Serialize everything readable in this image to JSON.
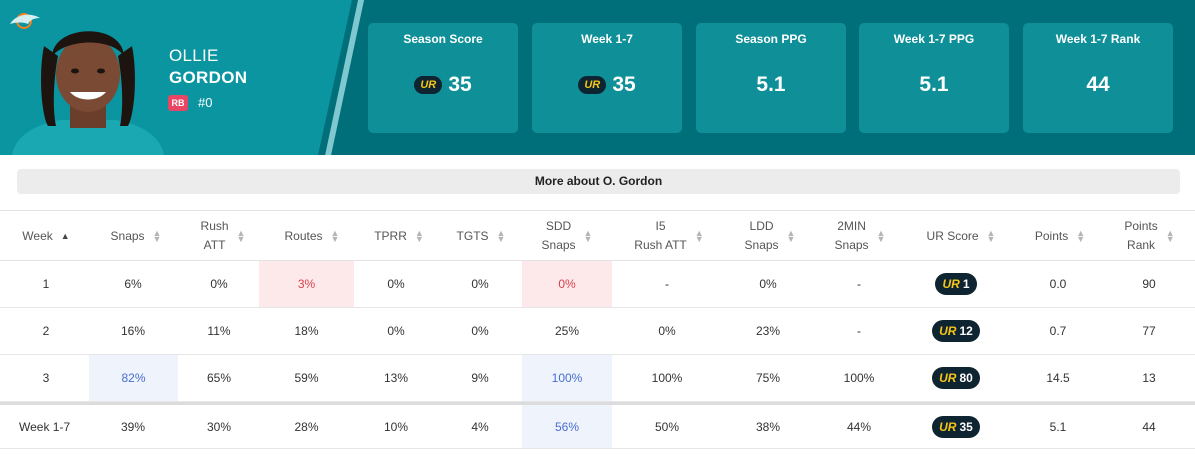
{
  "player": {
    "first_name": "OLLIE",
    "last_name": "GORDON",
    "position": "RB",
    "jersey": "#0"
  },
  "colors": {
    "header_bg": "#006f7a",
    "header_panel": "#0a95a0",
    "card_bg": "#0f8f98",
    "ur_gold": "#f5c518",
    "ur_dark": "#0e2430",
    "pos_badge": "#e84664"
  },
  "ur_logo_text": "UR",
  "cards": [
    {
      "label": "Season Score",
      "value": "35",
      "ur": true
    },
    {
      "label": "Week 1-7",
      "value": "35",
      "ur": true
    },
    {
      "label": "Season PPG",
      "value": "5.1",
      "ur": false
    },
    {
      "label": "Week 1-7 PPG",
      "value": "5.1",
      "ur": false
    },
    {
      "label": "Week 1-7 Rank",
      "value": "44",
      "ur": false
    }
  ],
  "more_label": "More about O. Gordon",
  "columns": [
    {
      "l1": "Week",
      "l2": ""
    },
    {
      "l1": "Snaps",
      "l2": ""
    },
    {
      "l1": "Rush",
      "l2": "ATT"
    },
    {
      "l1": "Routes",
      "l2": ""
    },
    {
      "l1": "TPRR",
      "l2": ""
    },
    {
      "l1": "TGTS",
      "l2": ""
    },
    {
      "l1": "SDD",
      "l2": "Snaps"
    },
    {
      "l1": "I5",
      "l2": "Rush ATT"
    },
    {
      "l1": "LDD",
      "l2": "Snaps"
    },
    {
      "l1": "2MIN",
      "l2": "Snaps"
    },
    {
      "l1": "UR Score",
      "l2": ""
    },
    {
      "l1": "Points",
      "l2": ""
    },
    {
      "l1": "Points",
      "l2": "Rank"
    }
  ],
  "rows": [
    {
      "week": "1",
      "snaps": "6%",
      "rush_att": "0%",
      "routes": "3%",
      "tprr": "0%",
      "tgts": "0%",
      "sdd_snaps": "0%",
      "i5_rush_att": "-",
      "ldd_snaps": "0%",
      "two_min_snaps": "-",
      "ur_score": "1",
      "points": "0.0",
      "points_rank": "90"
    },
    {
      "week": "2",
      "snaps": "16%",
      "rush_att": "11%",
      "routes": "18%",
      "tprr": "0%",
      "tgts": "0%",
      "sdd_snaps": "25%",
      "i5_rush_att": "0%",
      "ldd_snaps": "23%",
      "two_min_snaps": "-",
      "ur_score": "12",
      "points": "0.7",
      "points_rank": "77"
    },
    {
      "week": "3",
      "snaps": "82%",
      "rush_att": "65%",
      "routes": "59%",
      "tprr": "13%",
      "tgts": "9%",
      "sdd_snaps": "100%",
      "i5_rush_att": "100%",
      "ldd_snaps": "75%",
      "two_min_snaps": "100%",
      "ur_score": "80",
      "points": "14.5",
      "points_rank": "13"
    }
  ],
  "total": {
    "week": "Week 1-7",
    "snaps": "39%",
    "rush_att": "30%",
    "routes": "28%",
    "tprr": "10%",
    "tgts": "4%",
    "sdd_snaps": "56%",
    "i5_rush_att": "50%",
    "ldd_snaps": "38%",
    "two_min_snaps": "44%",
    "ur_score": "35",
    "points": "5.1",
    "points_rank": "44"
  }
}
